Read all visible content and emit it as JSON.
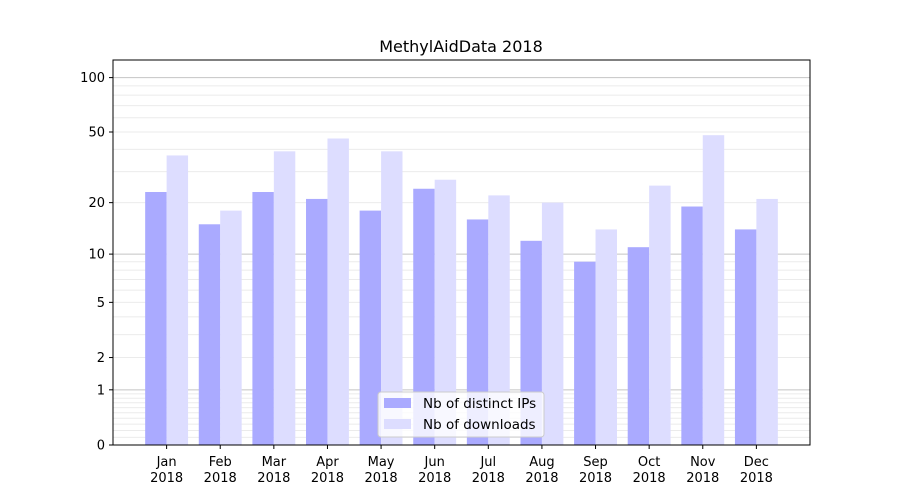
{
  "chart_data": {
    "type": "bar",
    "title": "MethylAidData 2018",
    "xlabel": "",
    "ylabel": "",
    "y_scale": "log10(1+y)",
    "ylim": [
      0,
      125
    ],
    "yticks": [
      0,
      1,
      2,
      5,
      10,
      20,
      50,
      100
    ],
    "grid": true,
    "legend_position": "lower center",
    "categories": [
      [
        "Jan",
        "2018"
      ],
      [
        "Feb",
        "2018"
      ],
      [
        "Mar",
        "2018"
      ],
      [
        "Apr",
        "2018"
      ],
      [
        "May",
        "2018"
      ],
      [
        "Jun",
        "2018"
      ],
      [
        "Jul",
        "2018"
      ],
      [
        "Aug",
        "2018"
      ],
      [
        "Sep",
        "2018"
      ],
      [
        "Oct",
        "2018"
      ],
      [
        "Nov",
        "2018"
      ],
      [
        "Dec",
        "2018"
      ]
    ],
    "series": [
      {
        "name": "Nb of distinct IPs",
        "color": "#aaaaff",
        "values": [
          23,
          15,
          23,
          21,
          18,
          24,
          16,
          12,
          9,
          11,
          19,
          14
        ]
      },
      {
        "name": "Nb of downloads",
        "color": "#ddddff",
        "values": [
          37,
          18,
          39,
          46,
          39,
          27,
          22,
          20,
          14,
          25,
          48,
          21
        ]
      }
    ]
  }
}
